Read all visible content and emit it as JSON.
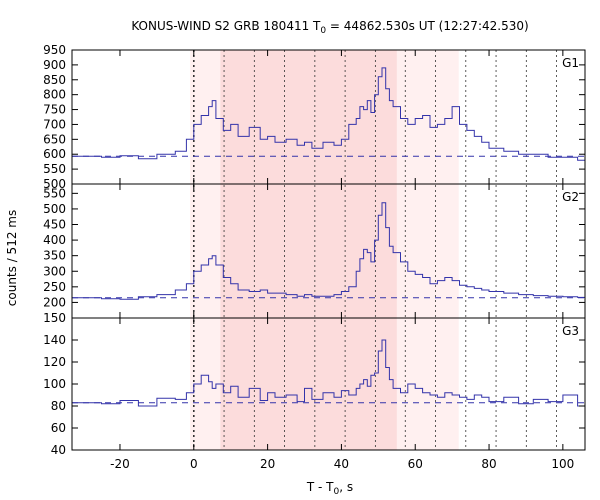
{
  "title_main": "KONUS-WIND S2 GRB 180411 T",
  "title_sub": "0",
  "title_rest": " = 44862.530s UT (12:27:42.530)",
  "ylabel": "counts / 512 ms",
  "xlabel_main": "T - T",
  "xlabel_sub": "0",
  "xlabel_rest": ", s",
  "chart_data": {
    "type": "line",
    "xlim": [
      -33,
      106
    ],
    "x_ticks": [
      -20,
      0,
      20,
      40,
      60,
      80,
      100
    ],
    "x_tick_labels": [
      "-20",
      "0",
      "20",
      "40",
      "60",
      "80",
      "100"
    ],
    "shaded_regions": [
      {
        "x0": -1.0,
        "x1": 71.8,
        "color": "#fff0f0"
      },
      {
        "x0": 7.2,
        "x1": 55.0,
        "color": "#fcdcdc"
      }
    ],
    "vertical_dotted_lines": [
      0,
      8.2,
      16.4,
      24.6,
      32.8,
      41.0,
      49.2,
      57.3,
      65.5,
      73.7,
      81.9,
      90.1,
      98.3
    ],
    "colors": {
      "series": "#3333aa",
      "background_line": "#3333aa"
    },
    "panels": [
      {
        "name": "G1",
        "ylim": [
          500,
          950
        ],
        "y_ticks": [
          500,
          550,
          600,
          650,
          700,
          750,
          800,
          850,
          900,
          950
        ],
        "y_tick_labels": [
          "500",
          "550",
          "600",
          "650",
          "700",
          "750",
          "800",
          "850",
          "900",
          "950"
        ],
        "background": 593,
        "x": [
          -33,
          -25,
          -20,
          -15,
          -10,
          -5,
          -2,
          0,
          2,
          4,
          5,
          6,
          8,
          10,
          12,
          15,
          18,
          20,
          22,
          25,
          28,
          30,
          32,
          35,
          38,
          40,
          42,
          44,
          45,
          46,
          47,
          48,
          49,
          50,
          51,
          52,
          53,
          54,
          56,
          58,
          60,
          62,
          64,
          66,
          68,
          70,
          72,
          74,
          76,
          78,
          80,
          84,
          88,
          92,
          96,
          100,
          104,
          106
        ],
        "values": [
          593,
          590,
          595,
          585,
          600,
          610,
          650,
          700,
          730,
          760,
          780,
          720,
          680,
          700,
          660,
          690,
          650,
          660,
          640,
          650,
          630,
          640,
          620,
          640,
          630,
          650,
          700,
          720,
          760,
          750,
          780,
          740,
          800,
          860,
          890,
          820,
          780,
          760,
          720,
          700,
          720,
          730,
          690,
          700,
          720,
          760,
          700,
          680,
          660,
          640,
          620,
          610,
          600,
          600,
          590,
          590,
          580,
          580
        ]
      },
      {
        "name": "G2",
        "ylim": [
          150,
          580
        ],
        "y_ticks": [
          150,
          200,
          250,
          300,
          350,
          400,
          450,
          500,
          550
        ],
        "y_tick_labels": [
          "150",
          "200",
          "250",
          "300",
          "350",
          "400",
          "450",
          "500",
          "550"
        ],
        "background": 215,
        "x": [
          -33,
          -25,
          -20,
          -15,
          -10,
          -5,
          -2,
          0,
          2,
          4,
          5,
          6,
          8,
          10,
          12,
          15,
          18,
          20,
          22,
          25,
          28,
          30,
          32,
          35,
          38,
          40,
          42,
          44,
          45,
          46,
          47,
          48,
          49,
          50,
          51,
          52,
          53,
          54,
          56,
          58,
          60,
          62,
          64,
          66,
          68,
          70,
          72,
          74,
          76,
          78,
          80,
          84,
          88,
          92,
          96,
          100,
          104,
          106
        ],
        "values": [
          215,
          212,
          210,
          218,
          225,
          240,
          260,
          300,
          320,
          340,
          350,
          320,
          280,
          260,
          240,
          235,
          240,
          230,
          230,
          225,
          220,
          225,
          220,
          220,
          225,
          235,
          250,
          300,
          340,
          370,
          360,
          330,
          400,
          480,
          520,
          440,
          380,
          360,
          330,
          300,
          290,
          280,
          260,
          270,
          280,
          270,
          255,
          250,
          245,
          240,
          235,
          230,
          225,
          222,
          220,
          218,
          216,
          215
        ]
      },
      {
        "name": "G3",
        "ylim": [
          40,
          160
        ],
        "y_ticks": [
          40,
          60,
          80,
          100,
          120,
          140
        ],
        "y_tick_labels": [
          "40",
          "60",
          "80",
          "100",
          "120",
          "140"
        ],
        "background": 83,
        "x": [
          -33,
          -25,
          -20,
          -15,
          -10,
          -5,
          -2,
          0,
          2,
          4,
          5,
          6,
          8,
          10,
          12,
          15,
          18,
          20,
          22,
          25,
          28,
          30,
          32,
          35,
          38,
          40,
          42,
          44,
          45,
          46,
          47,
          48,
          49,
          50,
          51,
          52,
          53,
          54,
          56,
          58,
          60,
          62,
          64,
          66,
          68,
          70,
          72,
          74,
          76,
          78,
          80,
          84,
          88,
          92,
          96,
          100,
          104,
          106
        ],
        "values": [
          83,
          82,
          85,
          80,
          87,
          86,
          92,
          100,
          108,
          102,
          96,
          100,
          92,
          98,
          88,
          96,
          85,
          92,
          88,
          90,
          84,
          96,
          86,
          92,
          88,
          94,
          90,
          96,
          100,
          104,
          98,
          108,
          110,
          130,
          140,
          115,
          104,
          96,
          92,
          100,
          96,
          92,
          90,
          88,
          92,
          90,
          88,
          86,
          90,
          88,
          84,
          88,
          82,
          86,
          84,
          90,
          80,
          82
        ]
      }
    ]
  }
}
